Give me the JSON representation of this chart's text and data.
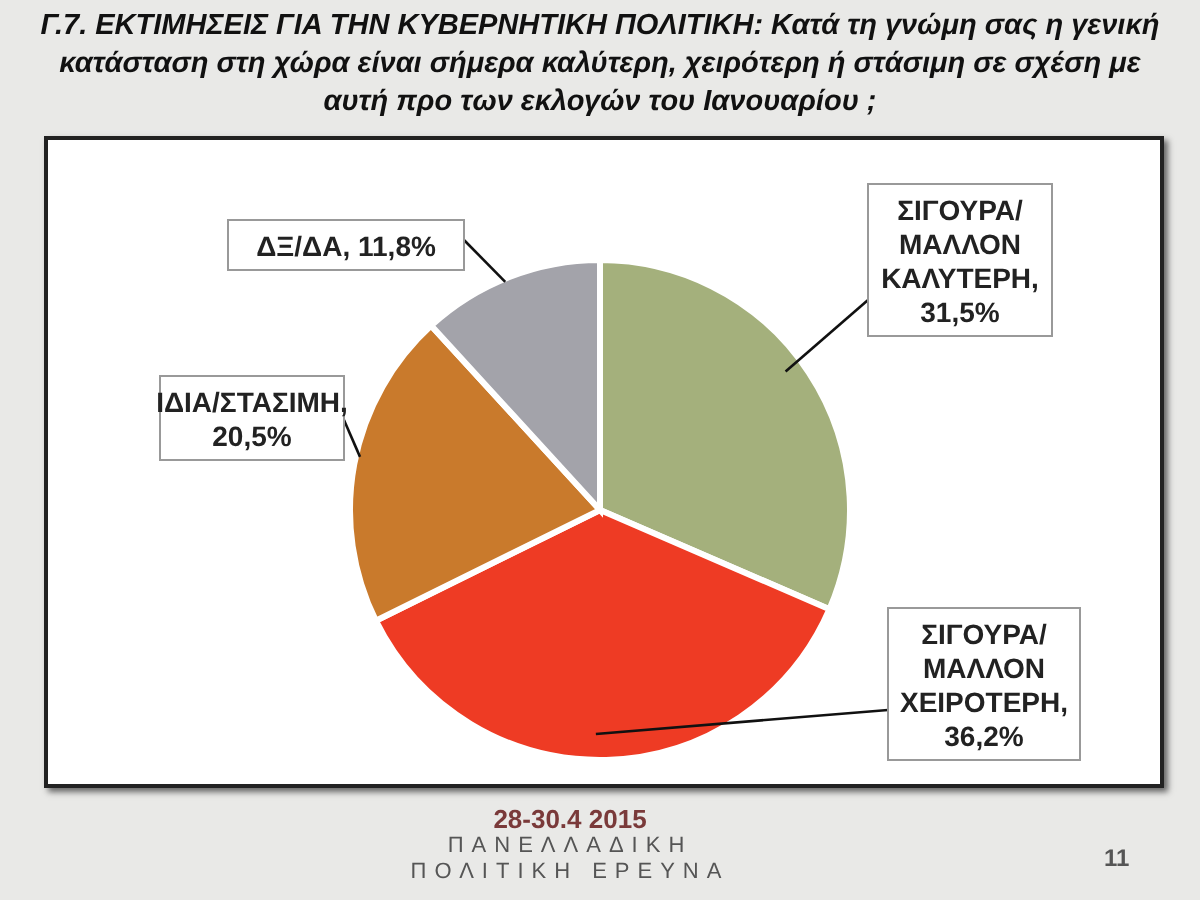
{
  "chart_data": {
    "type": "pie",
    "title": "Γ.7. ΕΚΤΙΜΗΣΕΙΣ ΓΙΑ ΤΗΝ ΚΥΒΕΡΝΗΤΙΚΗ ΠΟΛΙΤΙΚΗ: Κατά τη γνώμη σας η γενική κατάσταση στη χώρα είναι σήμερα καλύτερη, χειρότερη ή στάσιμη σε σχέση με αυτή προ των εκλογών του Ιανουαρίου ;",
    "categories": [
      "ΣΙΓΟΥΡΑ/ΜΑΛΛΟΝ ΚΑΛΥΤΕΡΗ",
      "ΣΙΓΟΥΡΑ/ΜΑΛΛΟΝ ΧΕΙΡΟΤΕΡΗ",
      "ΙΔΙΑ/ΣΤΑΣΙΜΗ",
      "ΔΞ/ΔΑ"
    ],
    "values": [
      31.5,
      36.2,
      20.5,
      11.8
    ],
    "value_labels": [
      ", 31,5%",
      ", 36,2%",
      ", 20,5%",
      ", 11,8%"
    ],
    "colors": [
      "#a4b07c",
      "#ee3b24",
      "#c97a2c",
      "#a3a3aa"
    ],
    "legend": false,
    "annotations": [
      "28-30.4 2015",
      "ΠΑΝΕΛΛΑΔΙΚΗ ΠΟΛΙΤΙΚΗ ΕΡΕΥΝΑ",
      "11"
    ]
  }
}
